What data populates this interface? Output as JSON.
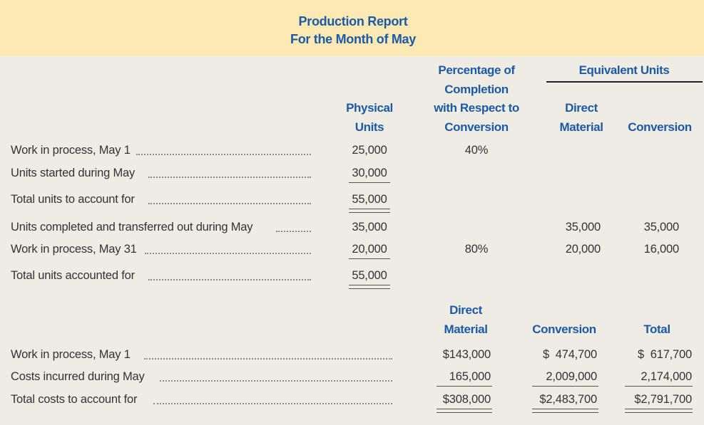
{
  "report": {
    "title_line1": "Production Report",
    "title_line2": "For the Month of May"
  },
  "units_section": {
    "headers": {
      "physical_units": [
        "Physical",
        "Units"
      ],
      "percentage_completion": [
        "Percentage of",
        "Completion",
        "with Respect to",
        "Conversion"
      ],
      "equivalent_units": "Equivalent Units",
      "direct_material": [
        "Direct",
        "Material"
      ],
      "conversion": "Conversion"
    },
    "rows": [
      {
        "label": "Work in process, May 1",
        "physical": "25,000",
        "pct": "40%",
        "dm": "",
        "conv": ""
      },
      {
        "label": "Units started during May",
        "physical": "30,000",
        "pct": "",
        "dm": "",
        "conv": ""
      },
      {
        "label": "Total units to account for",
        "physical": "55,000",
        "pct": "",
        "dm": "",
        "conv": ""
      },
      {
        "label": "Units completed and transferred out during May",
        "physical": "35,000",
        "pct": "",
        "dm": "35,000",
        "conv": "35,000"
      },
      {
        "label": "Work in process, May 31",
        "physical": "20,000",
        "pct": "80%",
        "dm": "20,000",
        "conv": "16,000"
      },
      {
        "label": "Total units accounted for",
        "physical": "55,000",
        "pct": "",
        "dm": "",
        "conv": ""
      }
    ]
  },
  "costs_section": {
    "headers": {
      "direct_material": [
        "Direct",
        "Material"
      ],
      "conversion": "Conversion",
      "total": "Total"
    },
    "rows": [
      {
        "label": "Work in process, May 1",
        "dm": "$143,000",
        "conv": "$  474,700",
        "total": "$  617,700"
      },
      {
        "label": "Costs incurred during May",
        "dm": "165,000",
        "conv": "2,009,000",
        "total": "2,174,000"
      },
      {
        "label": "Total costs to account for",
        "dm": "$308,000",
        "conv": "$2,483,700",
        "total": "$2,791,700"
      }
    ]
  }
}
